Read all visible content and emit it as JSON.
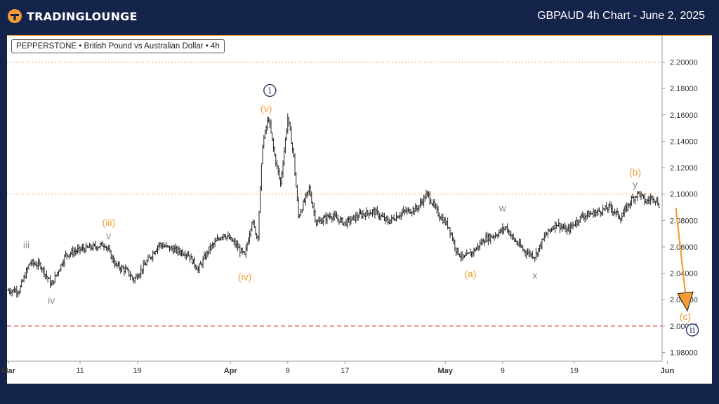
{
  "header": {
    "logo_text": "TRADINGLOUNGE",
    "chart_title": "GBPAUD 4h Chart - June 2, 2025"
  },
  "info_box": "PEPPERSTONE • British Pound vs Australian Dollar • 4h",
  "colors": {
    "background": "#14234a",
    "accent_orange": "#f39c34",
    "wave_gray": "#888888",
    "wave_navy": "#2a3a6a",
    "target_line_red": "#d9534f",
    "candle": "#222222"
  },
  "chart_data": {
    "type": "ohlc",
    "title": "",
    "ylim": [
      1.972,
      2.222
    ],
    "y_ticks": [
      "2.20000",
      "2.18000",
      "2.16000",
      "2.14000",
      "2.12000",
      "2.10000",
      "2.08000",
      "2.06000",
      "2.04000",
      "2.02000",
      "2.00000",
      "1.98000"
    ],
    "x_ticks": [
      {
        "label": "Mar",
        "bold": true,
        "day": 0
      },
      {
        "label": "11",
        "bold": false,
        "day": 10
      },
      {
        "label": "19",
        "bold": false,
        "day": 18
      },
      {
        "label": "Apr",
        "bold": true,
        "day": 31
      },
      {
        "label": "9",
        "bold": false,
        "day": 39
      },
      {
        "label": "17",
        "bold": false,
        "day": 47
      },
      {
        "label": "May",
        "bold": true,
        "day": 61
      },
      {
        "label": "9",
        "bold": false,
        "day": 69
      },
      {
        "label": "19",
        "bold": false,
        "day": 79
      },
      {
        "label": "Jun",
        "bold": true,
        "day": 92
      }
    ],
    "horizontal_lines": [
      {
        "value": 2.2,
        "style": "dotted",
        "color": "#f39c34"
      },
      {
        "value": 2.1,
        "style": "dotted",
        "color": "#f39c34"
      },
      {
        "value": 2.0,
        "style": "dashed",
        "color": "#d9534f"
      }
    ],
    "price_path": [
      {
        "day": 1.5,
        "price": 2.027
      },
      {
        "day": 3,
        "price": 2.048
      },
      {
        "day": 4.5,
        "price": 2.046
      },
      {
        "day": 6,
        "price": 2.031
      },
      {
        "day": 8,
        "price": 2.054
      },
      {
        "day": 10,
        "price": 2.058
      },
      {
        "day": 12,
        "price": 2.06
      },
      {
        "day": 13.5,
        "price": 2.062
      },
      {
        "day": 15,
        "price": 2.046
      },
      {
        "day": 16.5,
        "price": 2.042
      },
      {
        "day": 17.5,
        "price": 2.035
      },
      {
        "day": 19,
        "price": 2.046
      },
      {
        "day": 21,
        "price": 2.062
      },
      {
        "day": 23,
        "price": 2.058
      },
      {
        "day": 25,
        "price": 2.055
      },
      {
        "day": 26.5,
        "price": 2.043
      },
      {
        "day": 28,
        "price": 2.058
      },
      {
        "day": 30,
        "price": 2.07
      },
      {
        "day": 31.5,
        "price": 2.063
      },
      {
        "day": 33,
        "price": 2.053
      },
      {
        "day": 34,
        "price": 2.08
      },
      {
        "day": 34.8,
        "price": 2.066
      },
      {
        "day": 35.5,
        "price": 2.138
      },
      {
        "day": 36.3,
        "price": 2.158
      },
      {
        "day": 37.2,
        "price": 2.128
      },
      {
        "day": 38,
        "price": 2.108
      },
      {
        "day": 39,
        "price": 2.158
      },
      {
        "day": 39.8,
        "price": 2.13
      },
      {
        "day": 40.5,
        "price": 2.083
      },
      {
        "day": 42,
        "price": 2.104
      },
      {
        "day": 43,
        "price": 2.078
      },
      {
        "day": 45,
        "price": 2.084
      },
      {
        "day": 47,
        "price": 2.078
      },
      {
        "day": 49,
        "price": 2.084
      },
      {
        "day": 51,
        "price": 2.087
      },
      {
        "day": 53,
        "price": 2.079
      },
      {
        "day": 55,
        "price": 2.086
      },
      {
        "day": 57,
        "price": 2.089
      },
      {
        "day": 58.5,
        "price": 2.1
      },
      {
        "day": 60,
        "price": 2.085
      },
      {
        "day": 61.5,
        "price": 2.075
      },
      {
        "day": 62.5,
        "price": 2.058
      },
      {
        "day": 63.5,
        "price": 2.051
      },
      {
        "day": 65,
        "price": 2.057
      },
      {
        "day": 66.5,
        "price": 2.066
      },
      {
        "day": 68,
        "price": 2.069
      },
      {
        "day": 69.5,
        "price": 2.075
      },
      {
        "day": 70.5,
        "price": 2.066
      },
      {
        "day": 72,
        "price": 2.057
      },
      {
        "day": 73.5,
        "price": 2.053
      },
      {
        "day": 75,
        "price": 2.069
      },
      {
        "day": 76.5,
        "price": 2.078
      },
      {
        "day": 78,
        "price": 2.072
      },
      {
        "day": 80,
        "price": 2.083
      },
      {
        "day": 82,
        "price": 2.086
      },
      {
        "day": 84,
        "price": 2.09
      },
      {
        "day": 85.5,
        "price": 2.082
      },
      {
        "day": 87,
        "price": 2.096
      },
      {
        "day": 88,
        "price": 2.101
      },
      {
        "day": 89,
        "price": 2.094
      },
      {
        "day": 90,
        "price": 2.098
      },
      {
        "day": 91,
        "price": 2.091
      }
    ],
    "wave_labels": [
      {
        "text": "iii",
        "day": 2.5,
        "price": 2.0615,
        "color": "#888888",
        "style": "plain"
      },
      {
        "text": "iv",
        "day": 6,
        "price": 2.0195,
        "color": "#888888",
        "style": "plain"
      },
      {
        "text": "v",
        "day": 14,
        "price": 2.0685,
        "color": "#888888",
        "style": "plain"
      },
      {
        "text": "(iii)",
        "day": 14,
        "price": 2.0785,
        "color": "#f39c34",
        "style": "plain"
      },
      {
        "text": "(iv)",
        "day": 33,
        "price": 2.0375,
        "color": "#f39c34",
        "style": "plain"
      },
      {
        "text": "(v)",
        "day": 36,
        "price": 2.165,
        "color": "#f39c34",
        "style": "plain"
      },
      {
        "text": "i",
        "day": 36.5,
        "price": 2.1785,
        "color": "#2a3a6a",
        "style": "circle"
      },
      {
        "text": "w",
        "day": 69,
        "price": 2.0895,
        "color": "#888888",
        "style": "plain"
      },
      {
        "text": "x",
        "day": 73.5,
        "price": 2.0385,
        "color": "#888888",
        "style": "plain"
      },
      {
        "text": "(a)",
        "day": 64.5,
        "price": 2.0395,
        "color": "#f39c34",
        "style": "plain"
      },
      {
        "text": "(b)",
        "day": 87.5,
        "price": 2.1165,
        "color": "#f39c34",
        "style": "plain"
      },
      {
        "text": "y",
        "day": 87.5,
        "price": 2.1075,
        "color": "#888888",
        "style": "plain"
      },
      {
        "text": "(c)",
        "day": 94.5,
        "price": 2.0075,
        "color": "#f39c34",
        "style": "plain"
      },
      {
        "text": "ii",
        "day": 95.5,
        "price": 1.997,
        "color": "#2a3a6a",
        "style": "circle"
      }
    ],
    "projection_arrow": {
      "from": {
        "day": 93.2,
        "price": 2.0895
      },
      "to": {
        "day": 94.8,
        "price": 2.0115
      },
      "color": "#f39c34"
    }
  }
}
